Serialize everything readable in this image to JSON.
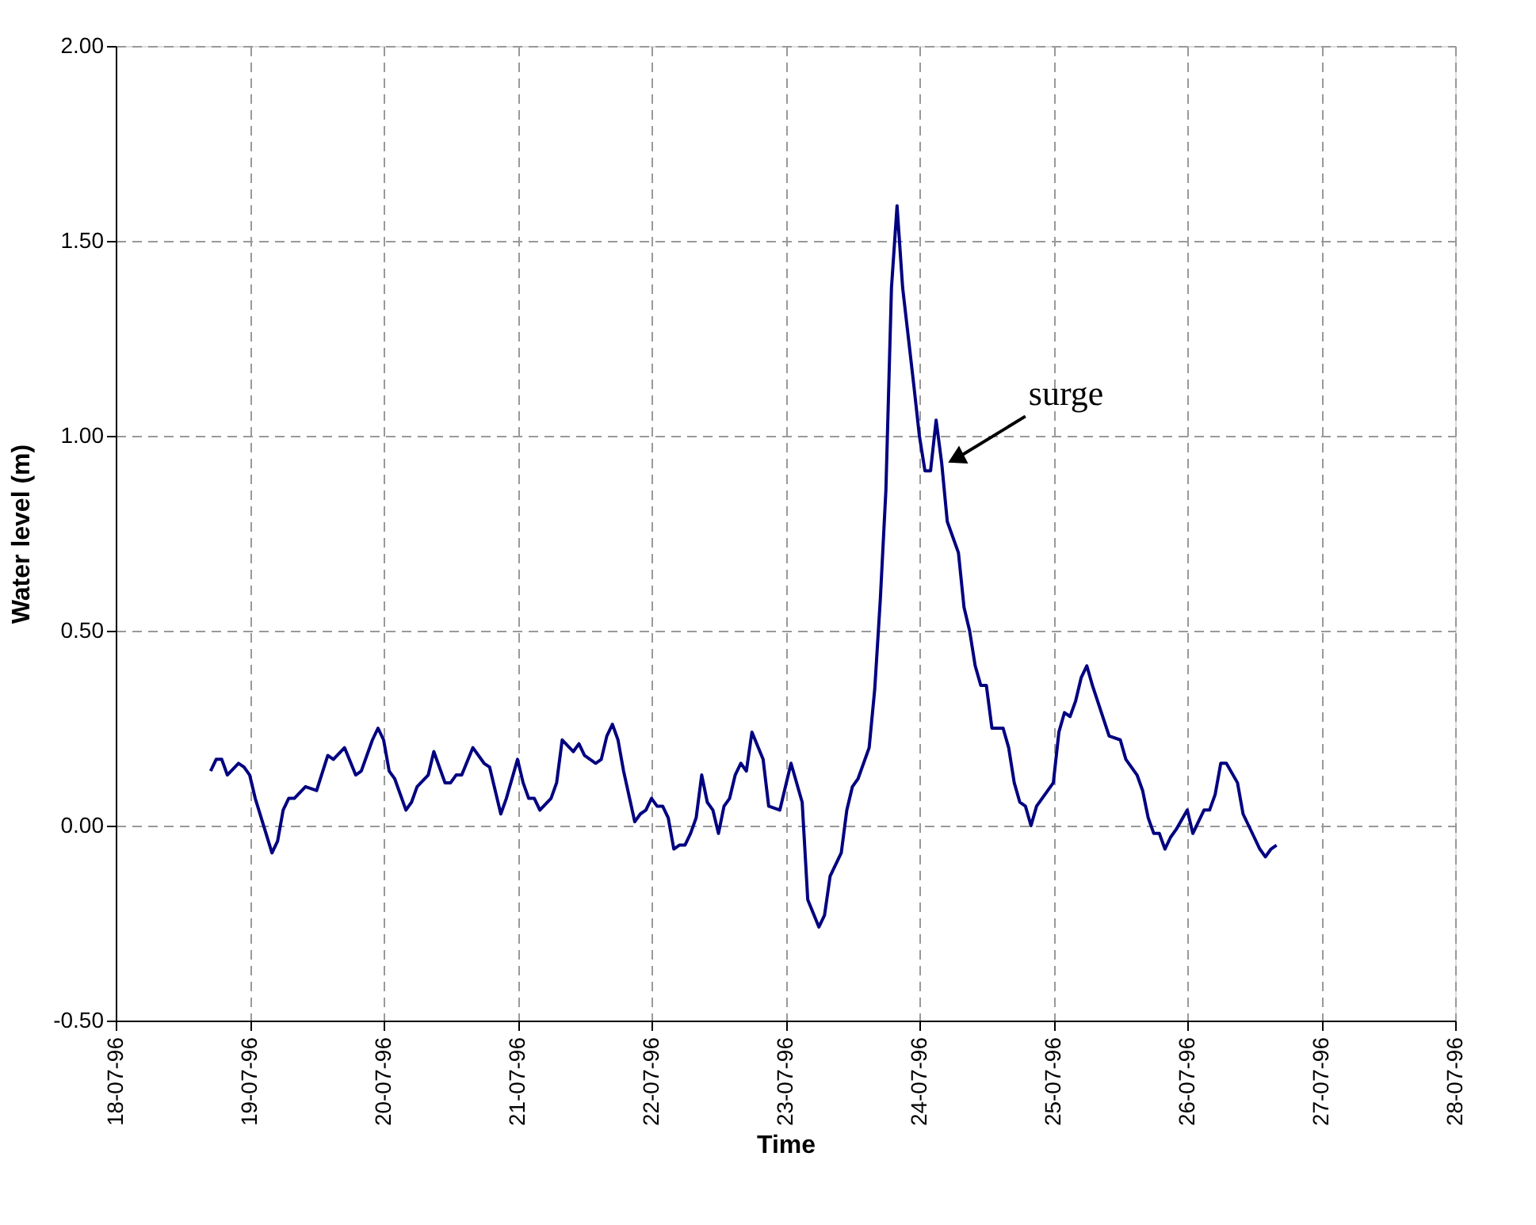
{
  "chart_data": {
    "type": "line",
    "xlabel": "Time",
    "ylabel": "Water level (m)",
    "xlim": [
      "1996-07-18",
      "1996-07-28"
    ],
    "xticks": [
      {
        "value": "1996-07-18",
        "label": "18-07-96"
      },
      {
        "value": "1996-07-19",
        "label": "19-07-96"
      },
      {
        "value": "1996-07-20",
        "label": "20-07-96"
      },
      {
        "value": "1996-07-21",
        "label": "21-07-96"
      },
      {
        "value": "1996-07-22",
        "label": "22-07-96"
      },
      {
        "value": "1996-07-23",
        "label": "23-07-96"
      },
      {
        "value": "1996-07-24",
        "label": "24-07-96"
      },
      {
        "value": "1996-07-25",
        "label": "25-07-96"
      },
      {
        "value": "1996-07-26",
        "label": "26-07-96"
      },
      {
        "value": "1996-07-27",
        "label": "27-07-96"
      },
      {
        "value": "1996-07-28",
        "label": "28-07-96"
      }
    ],
    "ylim": [
      -0.5,
      2.0
    ],
    "yticks": [
      {
        "value": -0.5,
        "label": "-0.50"
      },
      {
        "value": 0,
        "label": "0.00"
      },
      {
        "value": 0.5,
        "label": "0.50"
      },
      {
        "value": 1.0,
        "label": "1.00"
      },
      {
        "value": 1.5,
        "label": "1.50"
      },
      {
        "value": 2.0,
        "label": "2.00"
      }
    ],
    "grid": true,
    "marker": "none",
    "line_style": "solid",
    "annotations": [
      {
        "text": "surge",
        "x": "1996-07-24T05:00",
        "y": 0.93
      }
    ],
    "x": [
      "1996-07-18T17:00",
      "1996-07-18T18:00",
      "1996-07-18T19:00",
      "1996-07-18T20:00",
      "1996-07-18T22:00",
      "1996-07-18T23:00",
      "1996-07-19T00:00",
      "1996-07-19T01:00",
      "1996-07-19T04:00",
      "1996-07-19T05:00",
      "1996-07-19T06:00",
      "1996-07-19T07:00",
      "1996-07-19T08:00",
      "1996-07-19T10:00",
      "1996-07-19T12:00",
      "1996-07-19T14:00",
      "1996-07-19T15:00",
      "1996-07-19T17:00",
      "1996-07-19T19:00",
      "1996-07-19T20:00",
      "1996-07-19T22:00",
      "1996-07-19T23:00",
      "1996-07-20T00:00",
      "1996-07-20T01:00",
      "1996-07-20T02:00",
      "1996-07-20T04:00",
      "1996-07-20T05:00",
      "1996-07-20T06:00",
      "1996-07-20T08:00",
      "1996-07-20T09:00",
      "1996-07-20T11:00",
      "1996-07-20T12:00",
      "1996-07-20T13:00",
      "1996-07-20T14:00",
      "1996-07-20T16:00",
      "1996-07-20T18:00",
      "1996-07-20T19:00",
      "1996-07-20T21:00",
      "1996-07-20T22:00",
      "1996-07-21T00:00",
      "1996-07-21T01:00",
      "1996-07-21T02:00",
      "1996-07-21T03:00",
      "1996-07-21T04:00",
      "1996-07-21T06:00",
      "1996-07-21T07:00",
      "1996-07-21T08:00",
      "1996-07-21T10:00",
      "1996-07-21T11:00",
      "1996-07-21T12:00",
      "1996-07-21T13:00",
      "1996-07-21T14:00",
      "1996-07-21T15:00",
      "1996-07-21T16:00",
      "1996-07-21T17:00",
      "1996-07-21T18:00",
      "1996-07-21T19:00",
      "1996-07-21T21:00",
      "1996-07-21T22:00",
      "1996-07-21T23:00",
      "1996-07-22T00:00",
      "1996-07-22T01:00",
      "1996-07-22T02:00",
      "1996-07-22T03:00",
      "1996-07-22T04:00",
      "1996-07-22T05:00",
      "1996-07-22T06:00",
      "1996-07-22T07:00",
      "1996-07-22T08:00",
      "1996-07-22T09:00",
      "1996-07-22T10:00",
      "1996-07-22T11:00",
      "1996-07-22T12:00",
      "1996-07-22T13:00",
      "1996-07-22T14:00",
      "1996-07-22T15:00",
      "1996-07-22T16:00",
      "1996-07-22T17:00",
      "1996-07-22T18:00",
      "1996-07-22T20:00",
      "1996-07-22T21:00",
      "1996-07-22T23:00",
      "1996-07-23T01:00",
      "1996-07-23T03:00",
      "1996-07-23T04:00",
      "1996-07-23T06:00",
      "1996-07-23T07:00",
      "1996-07-23T08:00",
      "1996-07-23T10:00",
      "1996-07-23T11:00",
      "1996-07-23T12:00",
      "1996-07-23T13:00",
      "1996-07-23T15:00",
      "1996-07-23T16:00",
      "1996-07-23T17:00",
      "1996-07-23T18:00",
      "1996-07-23T19:00",
      "1996-07-23T20:00",
      "1996-07-23T21:00",
      "1996-07-23T23:00",
      "1996-07-24T00:00",
      "1996-07-24T01:00",
      "1996-07-24T02:00",
      "1996-07-24T03:00",
      "1996-07-24T04:00",
      "1996-07-24T05:00",
      "1996-07-24T07:00",
      "1996-07-24T08:00",
      "1996-07-24T09:00",
      "1996-07-24T10:00",
      "1996-07-24T11:00",
      "1996-07-24T12:00",
      "1996-07-24T13:00",
      "1996-07-24T15:00",
      "1996-07-24T16:00",
      "1996-07-24T17:00",
      "1996-07-24T18:00",
      "1996-07-24T19:00",
      "1996-07-24T20:00",
      "1996-07-24T21:00",
      "1996-07-25T00:00",
      "1996-07-25T01:00",
      "1996-07-25T02:00",
      "1996-07-25T03:00",
      "1996-07-25T04:00",
      "1996-07-25T05:00",
      "1996-07-25T06:00",
      "1996-07-25T07:00",
      "1996-07-25T10:00",
      "1996-07-25T12:00",
      "1996-07-25T13:00",
      "1996-07-25T15:00",
      "1996-07-25T16:00",
      "1996-07-25T17:00",
      "1996-07-25T18:00",
      "1996-07-25T19:00",
      "1996-07-25T20:00",
      "1996-07-25T21:00",
      "1996-07-25T22:00",
      "1996-07-26T00:00",
      "1996-07-26T01:00",
      "1996-07-26T03:00",
      "1996-07-26T04:00",
      "1996-07-26T05:00",
      "1996-07-26T06:00",
      "1996-07-26T07:00",
      "1996-07-26T09:00",
      "1996-07-26T10:00",
      "1996-07-26T12:00",
      "1996-07-26T13:00",
      "1996-07-26T14:00",
      "1996-07-26T15:00",
      "1996-07-26T16:00"
    ],
    "series": [
      {
        "color": "#000080",
        "values": [
          0.14,
          0.17,
          0.17,
          0.13,
          0.16,
          0.15,
          0.13,
          0.07,
          -0.07,
          -0.04,
          0.04,
          0.07,
          0.07,
          0.1,
          0.09,
          0.18,
          0.17,
          0.2,
          0.13,
          0.14,
          0.22,
          0.25,
          0.22,
          0.14,
          0.12,
          0.04,
          0.06,
          0.1,
          0.13,
          0.19,
          0.11,
          0.11,
          0.13,
          0.13,
          0.2,
          0.16,
          0.15,
          0.03,
          0.07,
          0.17,
          0.11,
          0.07,
          0.07,
          0.04,
          0.07,
          0.11,
          0.22,
          0.19,
          0.21,
          0.18,
          0.17,
          0.16,
          0.17,
          0.23,
          0.26,
          0.22,
          0.14,
          0.01,
          0.03,
          0.04,
          0.07,
          0.05,
          0.05,
          0.02,
          -0.06,
          -0.05,
          -0.05,
          -0.02,
          0.02,
          0.13,
          0.06,
          0.04,
          -0.02,
          0.05,
          0.07,
          0.13,
          0.16,
          0.14,
          0.24,
          0.17,
          0.05,
          0.04,
          0.16,
          0.06,
          -0.19,
          -0.26,
          -0.23,
          -0.13,
          -0.07,
          0.04,
          0.1,
          0.12,
          0.2,
          0.35,
          0.58,
          0.86,
          1.38,
          1.59,
          1.38,
          1.13,
          1.0,
          0.91,
          0.91,
          1.04,
          0.93,
          0.78,
          0.7,
          0.56,
          0.5,
          0.41,
          0.36,
          0.36,
          0.25,
          0.25,
          0.2,
          0.11,
          0.06,
          0.05,
          0.0,
          0.05,
          0.11,
          0.24,
          0.29,
          0.28,
          0.32,
          0.38,
          0.41,
          0.36,
          0.23,
          0.22,
          0.17,
          0.13,
          0.09,
          0.02,
          -0.02,
          -0.02,
          -0.06,
          -0.03,
          -0.01,
          0.04,
          -0.02,
          0.04,
          0.04,
          0.08,
          0.16,
          0.16,
          0.11,
          0.03,
          -0.03,
          -0.06,
          -0.08,
          -0.06,
          -0.05
        ]
      }
    ]
  }
}
